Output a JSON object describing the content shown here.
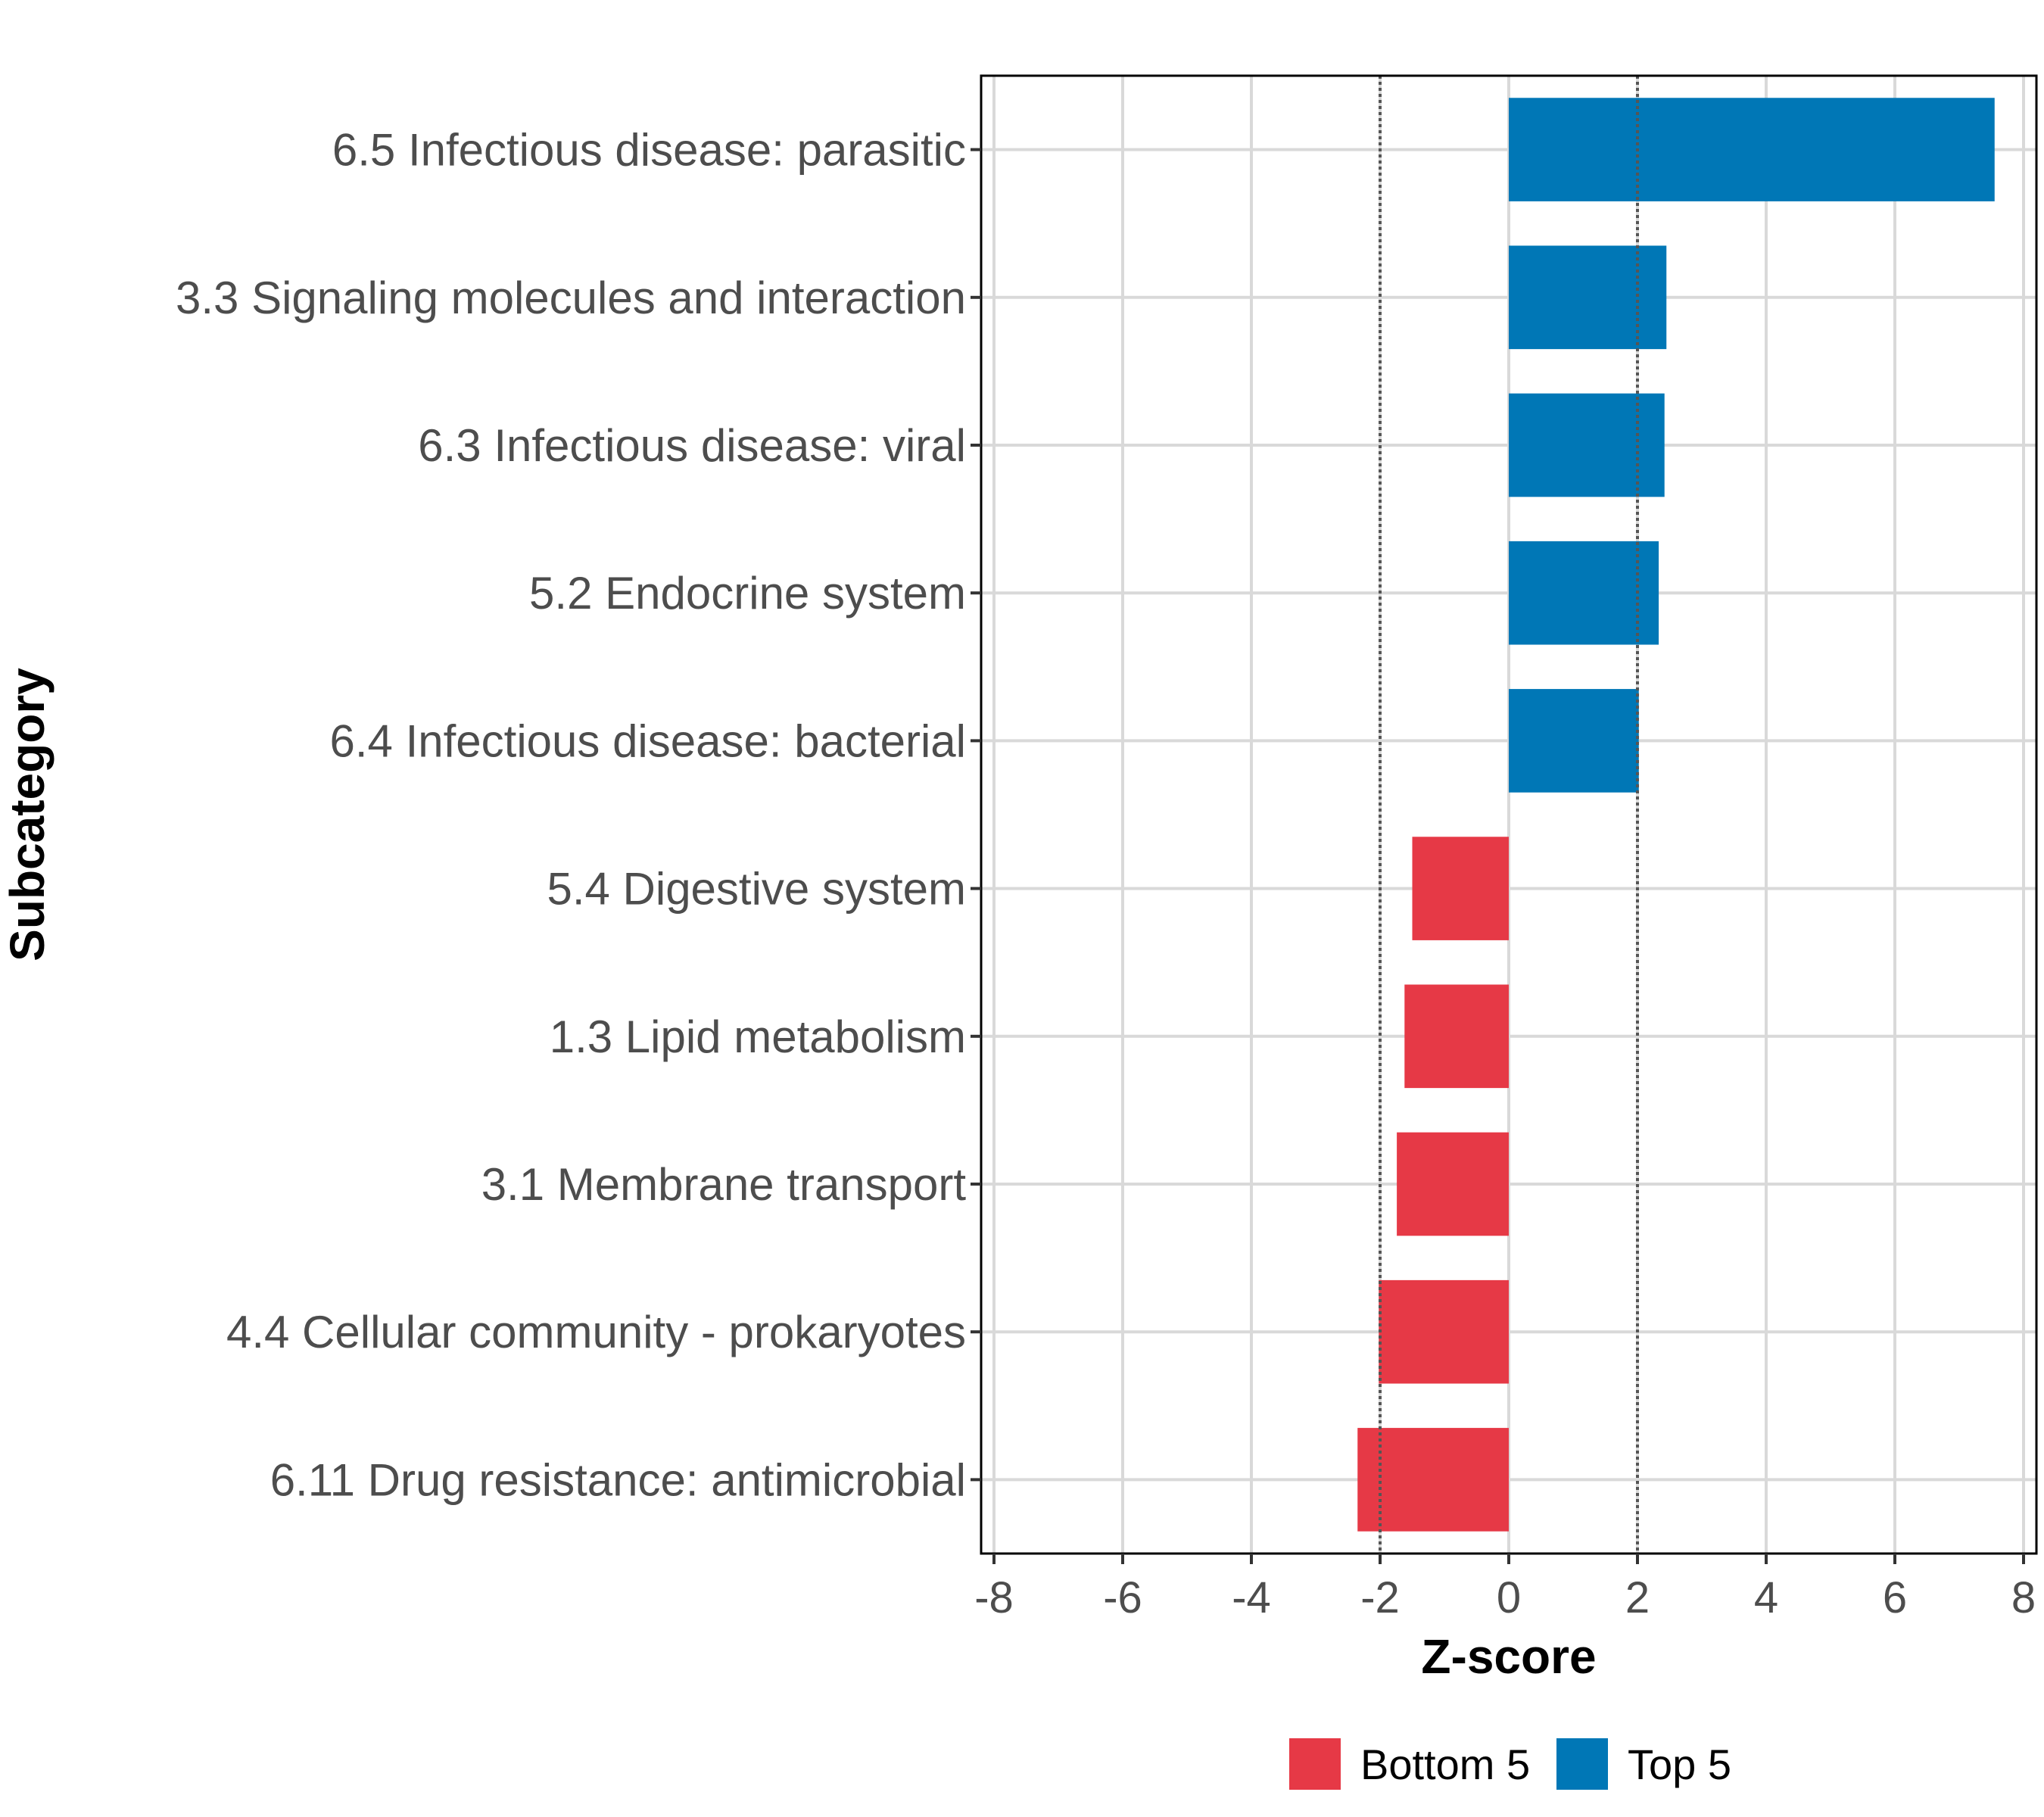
{
  "chart_data": {
    "type": "bar",
    "orientation": "horizontal",
    "xlabel": "Z-score",
    "ylabel": "Subcategory",
    "xlim": [
      -8.2,
      8.2
    ],
    "xticks": [
      -8,
      -6,
      -4,
      -2,
      0,
      2,
      4,
      6,
      8
    ],
    "threshold_lines": [
      -2,
      2
    ],
    "grid": true,
    "categories": [
      "6.5 Infectious disease: parasitic",
      "3.3 Signaling molecules and interaction",
      "6.3 Infectious disease: viral",
      "5.2 Endocrine system",
      "6.4 Infectious disease: bacterial",
      "5.4 Digestive system",
      "1.3 Lipid metabolism",
      "3.1 Membrane transport",
      "4.4 Cellular community - prokaryotes",
      "6.11 Drug resistance: antimicrobial"
    ],
    "values": [
      7.55,
      2.45,
      2.42,
      2.33,
      2.02,
      -1.5,
      -1.62,
      -1.74,
      -2.02,
      -2.35
    ],
    "groups": [
      "Top 5",
      "Top 5",
      "Top 5",
      "Top 5",
      "Top 5",
      "Bottom 5",
      "Bottom 5",
      "Bottom 5",
      "Bottom 5",
      "Bottom 5"
    ],
    "legend": {
      "position": "bottom",
      "entries": [
        {
          "label": "Bottom 5",
          "color": "#E63946"
        },
        {
          "label": "Top 5",
          "color": "#0077B6"
        }
      ]
    }
  }
}
